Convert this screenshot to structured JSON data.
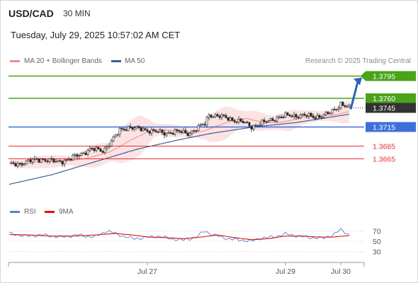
{
  "header": {
    "symbol": "USD/CAD",
    "timeframe": "30 MIN",
    "datetime": "Tuesday, July 29, 2025 10:57:02 AM CET"
  },
  "legend": {
    "ma20_label": "MA 20 + Bollinger Bands",
    "ma50_label": "MA 50",
    "ma20_color": "#f08c8c",
    "ma50_color": "#3a5f9a",
    "credit": "Research © 2025 Trading Central"
  },
  "rsi_legend": {
    "rsi_label": "RSI",
    "ma9_label": "9MA",
    "rsi_color": "#5b7fd6",
    "ma9_color": "#e01010"
  },
  "chart_data": [
    {
      "type": "candlestick",
      "title": "USD/CAD 30 MIN",
      "x_ticks": [
        "Jul 27",
        "Jul 29",
        "Jul 30"
      ],
      "ylim": [
        1.358,
        1.382
      ],
      "levels": [
        {
          "value": 1.3795,
          "label": "1.3795",
          "color": "#4aa31a",
          "kind": "target"
        },
        {
          "value": 1.376,
          "label": "1.3760",
          "color": "#4aa31a",
          "kind": "resistance"
        },
        {
          "value": 1.3745,
          "label": "1.3745",
          "color": "#333333",
          "kind": "last-price"
        },
        {
          "value": 1.3715,
          "label": "1.3715",
          "color": "#3d6fd9",
          "kind": "pivot"
        },
        {
          "value": 1.3685,
          "label": "1.3685",
          "color": "#e83030",
          "kind": "support"
        },
        {
          "value": 1.3665,
          "label": "1.3665",
          "color": "#e83030",
          "kind": "support"
        }
      ],
      "close_anchors": [
        [
          0,
          1.3655
        ],
        [
          8,
          1.366
        ],
        [
          15,
          1.3665
        ],
        [
          22,
          1.366
        ],
        [
          29,
          1.3665
        ],
        [
          35,
          1.3675
        ],
        [
          38,
          1.368
        ],
        [
          44,
          1.3678
        ],
        [
          50,
          1.37
        ],
        [
          52,
          1.371
        ],
        [
          56,
          1.3715
        ],
        [
          60,
          1.3712
        ],
        [
          66,
          1.371
        ],
        [
          72,
          1.3705
        ],
        [
          78,
          1.3708
        ],
        [
          84,
          1.3705
        ],
        [
          88,
          1.3712
        ],
        [
          92,
          1.372
        ],
        [
          94,
          1.3735
        ],
        [
          98,
          1.3732
        ],
        [
          104,
          1.3728
        ],
        [
          110,
          1.3722
        ],
        [
          114,
          1.3716
        ],
        [
          120,
          1.3722
        ],
        [
          126,
          1.373
        ],
        [
          132,
          1.3733
        ],
        [
          138,
          1.3733
        ],
        [
          144,
          1.3731
        ],
        [
          150,
          1.3735
        ],
        [
          153,
          1.3742
        ],
        [
          156,
          1.3752
        ],
        [
          158,
          1.3748
        ],
        [
          160,
          1.3745
        ]
      ],
      "ma50_anchors": [
        [
          0,
          1.3625
        ],
        [
          20,
          1.364
        ],
        [
          40,
          1.366
        ],
        [
          60,
          1.368
        ],
        [
          80,
          1.3695
        ],
        [
          95,
          1.3705
        ],
        [
          115,
          1.3715
        ],
        [
          135,
          1.3722
        ],
        [
          160,
          1.3735
        ]
      ],
      "projection": {
        "from": 1.3745,
        "to": 1.3795
      }
    },
    {
      "type": "line",
      "title": "RSI",
      "ylim": [
        20,
        80
      ],
      "y_ticks": [
        70,
        50,
        30
      ],
      "series": [
        {
          "name": "RSI",
          "points": [
            [
              0,
              65
            ],
            [
              8,
              60
            ],
            [
              16,
              62
            ],
            [
              24,
              58
            ],
            [
              32,
              62
            ],
            [
              40,
              58
            ],
            [
              46,
              70
            ],
            [
              52,
              62
            ],
            [
              58,
              55
            ],
            [
              64,
              57
            ],
            [
              70,
              60
            ],
            [
              76,
              55
            ],
            [
              82,
              52
            ],
            [
              88,
              58
            ],
            [
              92,
              70
            ],
            [
              96,
              62
            ],
            [
              100,
              58
            ],
            [
              104,
              54
            ],
            [
              110,
              52
            ],
            [
              114,
              50
            ],
            [
              118,
              56
            ],
            [
              124,
              58
            ],
            [
              130,
              64
            ],
            [
              136,
              60
            ],
            [
              142,
              57
            ],
            [
              148,
              56
            ],
            [
              152,
              62
            ],
            [
              156,
              72
            ],
            [
              160,
              63
            ]
          ]
        },
        {
          "name": "9MA",
          "points": [
            [
              0,
              63
            ],
            [
              10,
              62
            ],
            [
              20,
              60
            ],
            [
              30,
              60
            ],
            [
              40,
              62
            ],
            [
              50,
              65
            ],
            [
              58,
              62
            ],
            [
              66,
              58
            ],
            [
              74,
              57
            ],
            [
              82,
              55
            ],
            [
              90,
              58
            ],
            [
              98,
              62
            ],
            [
              106,
              57
            ],
            [
              114,
              53
            ],
            [
              122,
              55
            ],
            [
              130,
              60
            ],
            [
              138,
              60
            ],
            [
              146,
              58
            ],
            [
              152,
              58
            ],
            [
              160,
              61
            ]
          ]
        }
      ]
    }
  ]
}
